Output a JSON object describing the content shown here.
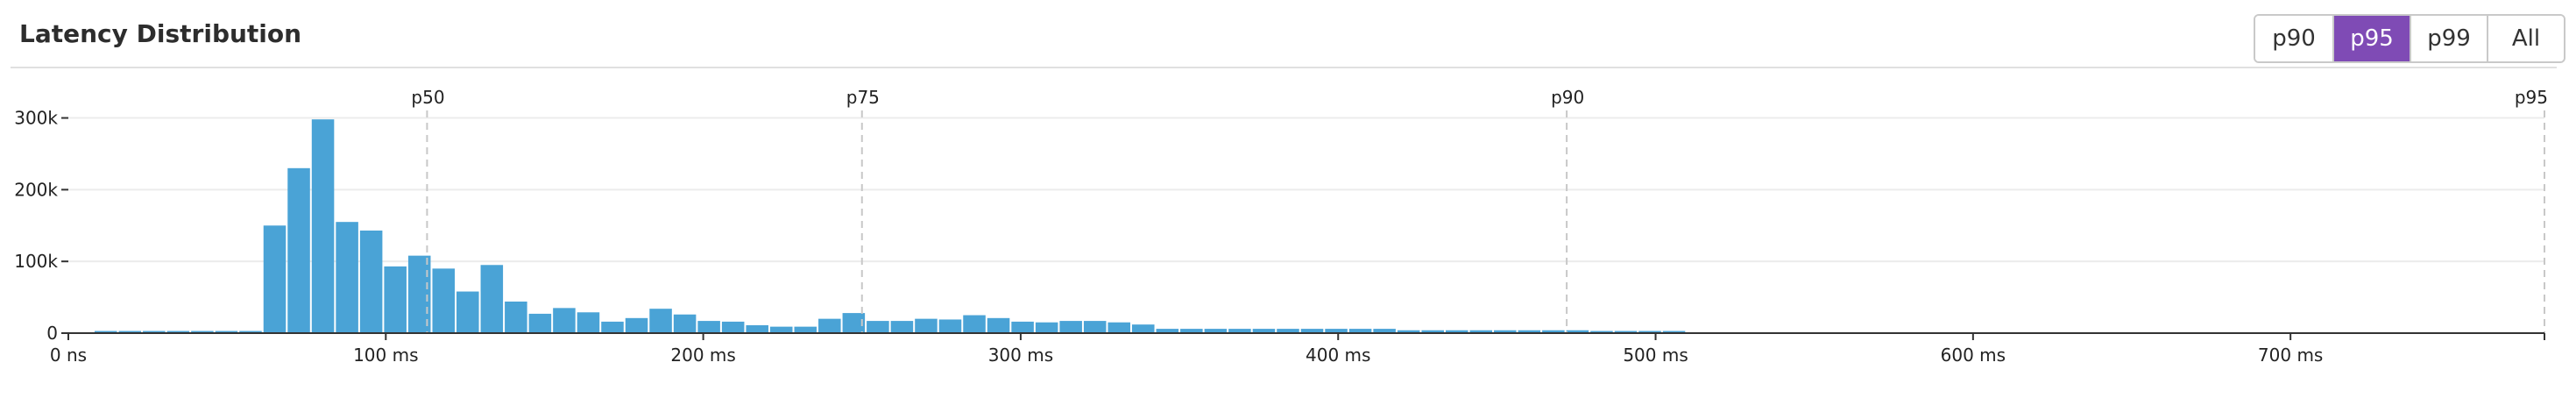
{
  "header": {
    "title": "Latency Distribution"
  },
  "percentile_selector": {
    "options": [
      {
        "label": "p90",
        "active": false
      },
      {
        "label": "p95",
        "active": true
      },
      {
        "label": "p99",
        "active": false
      },
      {
        "label": "All",
        "active": false
      }
    ]
  },
  "colors": {
    "bar": "#4aa3d6",
    "active_button": "#7f4bb5",
    "marker_line": "#c8c8c8"
  },
  "chart_data": {
    "type": "bar",
    "title": "Latency Distribution",
    "xlabel": "",
    "ylabel": "",
    "x_unit": "ms",
    "xlim": [
      0,
      780
    ],
    "ylim": [
      0,
      330000
    ],
    "grid": true,
    "legend": "none",
    "x_ticks": [
      {
        "value": 0,
        "label": "0 ns"
      },
      {
        "value": 100,
        "label": "100 ms"
      },
      {
        "value": 200,
        "label": "200 ms"
      },
      {
        "value": 300,
        "label": "300 ms"
      },
      {
        "value": 400,
        "label": "400 ms"
      },
      {
        "value": 500,
        "label": "500 ms"
      },
      {
        "value": 600,
        "label": "600 ms"
      },
      {
        "value": 700,
        "label": "700 ms"
      }
    ],
    "y_ticks": [
      {
        "value": 0,
        "label": "0"
      },
      {
        "value": 100000,
        "label": "100k"
      },
      {
        "value": 200000,
        "label": "200k"
      },
      {
        "value": 300000,
        "label": "300k"
      }
    ],
    "percentile_markers": [
      {
        "label": "p50",
        "value": 113
      },
      {
        "label": "p75",
        "value": 250
      },
      {
        "label": "p90",
        "value": 472
      },
      {
        "label": "p95",
        "value": 780
      }
    ],
    "bin_width": 7.6,
    "bin_starts": [
      8,
      15.6,
      23.2,
      30.8,
      38.4,
      46,
      53.6,
      61.2,
      68.8,
      76.4,
      84,
      91.6,
      99.2,
      106.8,
      114.4,
      122,
      129.6,
      137.2,
      144.8,
      152.4,
      160,
      167.6,
      175.2,
      182.8,
      190.4,
      198,
      205.6,
      213.2,
      220.8,
      228.4,
      236,
      243.6,
      251.2,
      258.8,
      266.4,
      274,
      281.6,
      289.2,
      296.8,
      304.4,
      312,
      319.6,
      327.2,
      334.8,
      342.4,
      350,
      357.6,
      365.2,
      372.8,
      380.4,
      388,
      395.6,
      403.2,
      410.8,
      418.4,
      426,
      433.6,
      441.2,
      448.8,
      456.4,
      464,
      471.6,
      479.2,
      486.8,
      494.4,
      502
    ],
    "values": [
      3000,
      3000,
      3000,
      3000,
      3000,
      3000,
      3000,
      150000,
      230000,
      298000,
      155000,
      143000,
      93000,
      108000,
      90000,
      58000,
      95000,
      44000,
      27000,
      35000,
      29000,
      16000,
      21000,
      34000,
      26000,
      17000,
      16000,
      11000,
      9000,
      9000,
      20000,
      28000,
      17000,
      17000,
      20000,
      19000,
      25000,
      21000,
      16000,
      15000,
      17000,
      17000,
      15000,
      12000,
      6000,
      6000,
      6000,
      6000,
      6000,
      6000,
      6000,
      6000,
      6000,
      6000,
      4000,
      4000,
      4000,
      4000,
      4000,
      4000,
      4000,
      4000,
      3000,
      3000,
      3000,
      3000
    ]
  }
}
